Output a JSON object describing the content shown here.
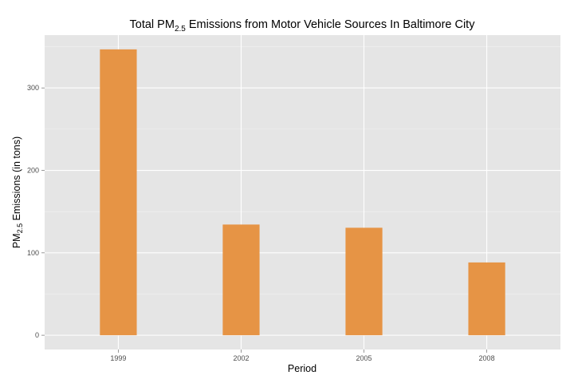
{
  "chart_data": {
    "type": "bar",
    "title": {
      "prefix": "Total PM",
      "subscript": "2.5",
      "suffix": " Emissions from Motor Vehicle Sources In Baltimore City"
    },
    "xlabel": "Period",
    "ylabel": {
      "prefix": "PM",
      "subscript": "2.5",
      "suffix": " Emissions (in tons)"
    },
    "categories": [
      "1999",
      "2002",
      "2005",
      "2008"
    ],
    "values": [
      346.8,
      134.3,
      130.4,
      88.3
    ],
    "ylim": [
      -17.3,
      364.1
    ],
    "yticks": [
      0,
      100,
      200,
      300
    ],
    "grid": true,
    "legend": "none",
    "colors": {
      "bar": "#E69445",
      "panel": "#E5E5E5",
      "grid_major": "#FFFFFF",
      "grid_minor": "#F2F2F2",
      "tick_text": "#4D4D4D"
    }
  }
}
